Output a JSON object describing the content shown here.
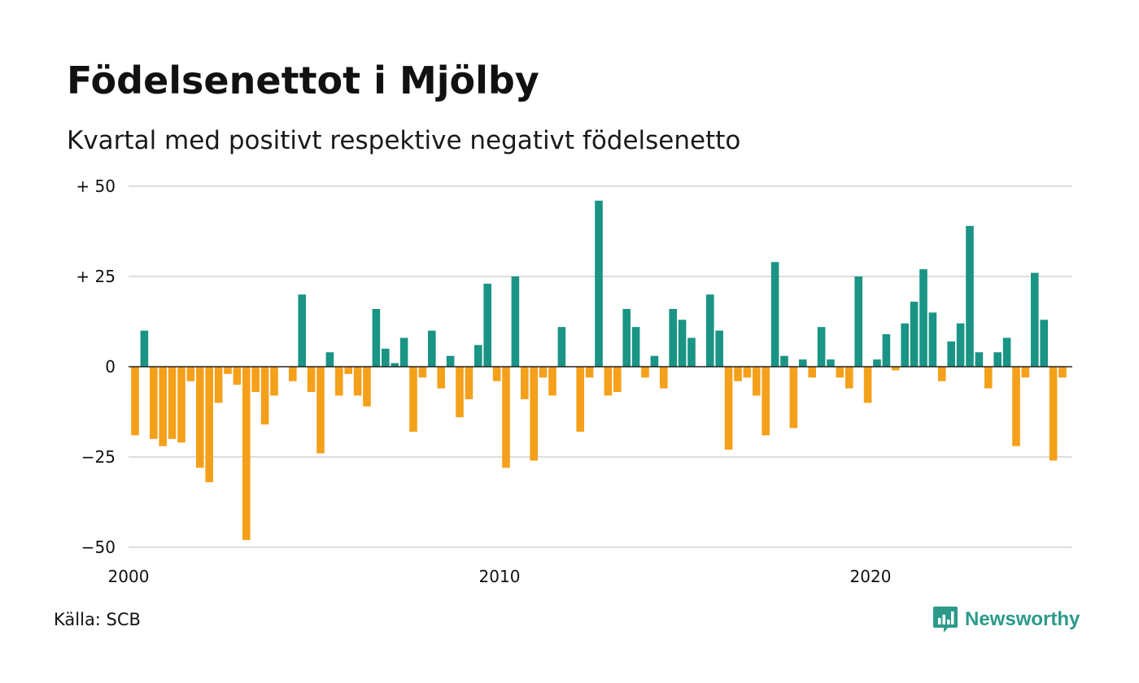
{
  "title": "Födelsenettot i Mjölby",
  "subtitle": "Kvartal med positivt respektive negativt födelsenetto",
  "source": "Källa: SCB",
  "brand": "Newsworthy",
  "colors": {
    "positive": "#1a9485",
    "negative": "#f5a01a",
    "grid": "#dddddd",
    "zero_line": "#222222",
    "brand": "#2b9a8a"
  },
  "chart_data": {
    "type": "bar",
    "title": "Födelsenettot i Mjölby",
    "subtitle": "Kvartal med positivt respektive negativt födelsenetto",
    "xlabel": "",
    "ylabel": "",
    "ylim": [
      -50,
      50
    ],
    "y_ticks": [
      {
        "value": 50,
        "label": "+ 50"
      },
      {
        "value": 25,
        "label": "+ 25"
      },
      {
        "value": 0,
        "label": "0"
      },
      {
        "value": -25,
        "label": "−25"
      },
      {
        "value": -50,
        "label": "−50"
      }
    ],
    "x_ticks": [
      {
        "value": 2000,
        "label": "2000"
      },
      {
        "value": 2010,
        "label": "2010"
      },
      {
        "value": 2020,
        "label": "2020"
      }
    ],
    "x_start": 2000,
    "periods_per_year": 4,
    "grid": true,
    "legend": "none",
    "values": [
      -19,
      10,
      -20,
      -22,
      -20,
      -21,
      -4,
      -28,
      -32,
      -10,
      -2,
      -5,
      -48,
      -7,
      -16,
      -8,
      0,
      -4,
      20,
      -7,
      -24,
      4,
      -8,
      -2,
      -8,
      -11,
      16,
      5,
      1,
      8,
      -18,
      -3,
      10,
      -6,
      3,
      -14,
      -9,
      6,
      23,
      -4,
      -28,
      25,
      -9,
      -26,
      -3,
      -8,
      11,
      0,
      -18,
      -3,
      46,
      -8,
      -7,
      16,
      11,
      -3,
      3,
      -6,
      16,
      13,
      8,
      0,
      20,
      10,
      -23,
      -4,
      -3,
      -8,
      -19,
      29,
      3,
      -17,
      2,
      -3,
      11,
      2,
      -3,
      -6,
      25,
      -10,
      2,
      9,
      -1,
      12,
      18,
      27,
      15,
      -4,
      7,
      12,
      39,
      4,
      -6,
      4,
      8,
      -22,
      -3,
      26,
      13,
      -26,
      -3
    ]
  }
}
